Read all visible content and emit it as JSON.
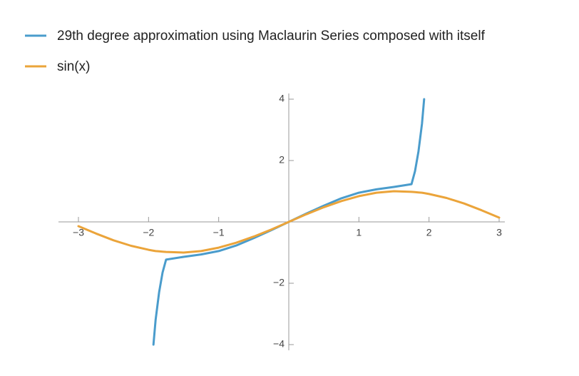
{
  "chart_data": {
    "type": "line",
    "x": [
      -3,
      -2.75,
      -2.5,
      -2.25,
      -2,
      -1.93,
      -1.9,
      -1.85,
      -1.8,
      -1.75,
      -1.5,
      -1.25,
      -1,
      -0.75,
      -0.5,
      -0.25,
      0,
      0.25,
      0.5,
      0.75,
      1,
      1.25,
      1.5,
      1.75,
      1.8,
      1.85,
      1.9,
      1.93,
      2,
      2.25,
      2.5,
      2.75,
      3
    ],
    "series": [
      {
        "name": "29th degree approximation using Maclaurin Series composed with itself",
        "color": "#4a9ccc",
        "values": [
          null,
          null,
          null,
          null,
          null,
          -4,
          -3.2,
          -2.3,
          -1.65,
          -1.23,
          -1.14,
          -1.06,
          -0.95,
          -0.77,
          -0.53,
          -0.27,
          0,
          0.27,
          0.53,
          0.77,
          0.95,
          1.06,
          1.14,
          1.23,
          1.65,
          2.3,
          3.2,
          4,
          null,
          null,
          null,
          null,
          null
        ]
      },
      {
        "name": "sin(x)",
        "color": "#eba43a",
        "values": [
          -0.14,
          -0.38,
          -0.6,
          -0.78,
          -0.91,
          -0.94,
          -0.95,
          -0.96,
          -0.97,
          -0.98,
          -1.0,
          -0.95,
          -0.84,
          -0.68,
          -0.48,
          -0.25,
          0,
          0.25,
          0.48,
          0.68,
          0.84,
          0.95,
          1.0,
          0.98,
          0.97,
          0.96,
          0.95,
          0.94,
          0.91,
          0.78,
          0.6,
          0.38,
          0.14
        ]
      }
    ],
    "xlim": [
      -3,
      3
    ],
    "ylim": [
      -4,
      4
    ],
    "xticks": [
      {
        "value": -3,
        "label": "−3"
      },
      {
        "value": -2,
        "label": "−2"
      },
      {
        "value": -1,
        "label": "−1"
      },
      1,
      2,
      3
    ],
    "yticks": [
      4,
      2,
      {
        "value": -2,
        "label": "−2"
      },
      {
        "value": -4,
        "label": "−4"
      }
    ],
    "legend": "top-left"
  }
}
